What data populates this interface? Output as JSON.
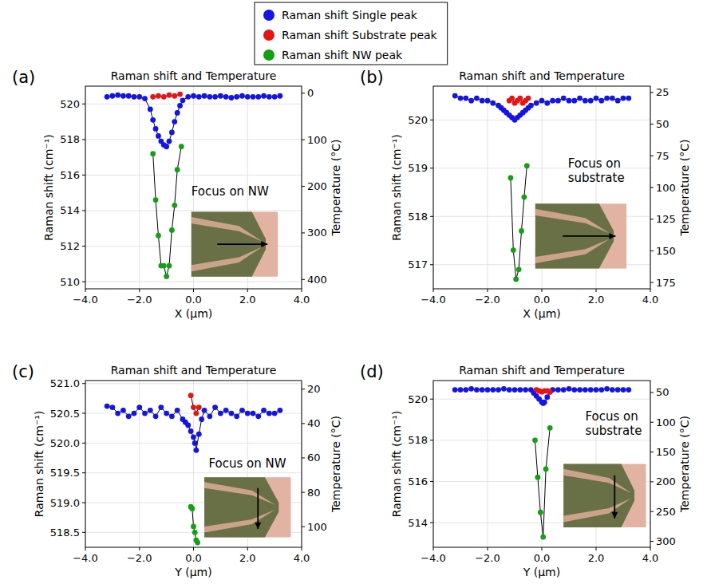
{
  "chart_data": [
    {
      "type": "line",
      "label": "(a)",
      "title": "Raman shift and Temperature",
      "x_label": "X (μm)",
      "y_label": "Raman shift (cm⁻¹)",
      "y2_label": "Temperature (°C)",
      "annotations": [
        {
          "text": "Focus on NW"
        }
      ],
      "legend": "top",
      "grid": true,
      "xlim": [
        -4,
        4
      ],
      "xticks": [
        {
          "value": -4,
          "label": "−4.0"
        },
        {
          "value": -2,
          "label": "−2.0"
        },
        {
          "value": 0,
          "label": "0.0"
        },
        {
          "value": 2,
          "label": "2.0"
        },
        {
          "value": 4,
          "label": "4.0"
        }
      ],
      "ylim": [
        509.6,
        521.0
      ],
      "yticks": [
        510,
        512,
        514,
        516,
        518,
        520
      ],
      "y2lim": [
        420,
        -15
      ],
      "y2ticks": [
        0,
        100,
        200,
        300,
        400
      ],
      "series": [
        {
          "name": "Raman shift Single peak",
          "color": "#1414e6",
          "marker": "circle",
          "line_style": "solid",
          "x": [
            -3.2,
            -3.0,
            -2.8,
            -2.6,
            -2.4,
            -2.2,
            -2.0,
            -1.8,
            -1.6,
            -1.5,
            -1.4,
            -1.3,
            -1.2,
            -1.1,
            -1.0,
            -0.9,
            -0.8,
            -0.7,
            -0.6,
            -0.5,
            -0.4,
            -0.2,
            0.0,
            0.2,
            0.4,
            0.6,
            0.8,
            1.0,
            1.2,
            1.4,
            1.6,
            1.8,
            2.0,
            2.2,
            2.4,
            2.6,
            2.8,
            3.0,
            3.2
          ],
          "values": [
            520.4,
            520.45,
            520.5,
            520.45,
            520.45,
            520.4,
            520.4,
            520.3,
            519.7,
            519.1,
            518.6,
            518.2,
            517.9,
            517.7,
            517.6,
            517.9,
            518.4,
            519.0,
            519.5,
            519.9,
            520.2,
            520.4,
            520.45,
            520.4,
            520.45,
            520.4,
            520.4,
            520.45,
            520.4,
            520.35,
            520.4,
            520.45,
            520.4,
            520.4,
            520.4,
            520.45,
            520.4,
            520.4,
            520.45
          ]
        },
        {
          "name": "Raman shift Substrate peak",
          "color": "#e61414",
          "marker": "circle",
          "line_style": "solid",
          "x": [
            -1.5,
            -1.3,
            -1.1,
            -0.9,
            -0.7,
            -0.5
          ],
          "values": [
            520.4,
            520.45,
            520.4,
            520.5,
            520.45,
            520.55
          ]
        },
        {
          "name": "Raman shift NW peak",
          "color": "#14a014",
          "marker": "circle",
          "line_style": "solid",
          "x": [
            -1.5,
            -1.4,
            -1.3,
            -1.2,
            -1.1,
            -1.0,
            -0.9,
            -0.8,
            -0.7,
            -0.6,
            -0.45
          ],
          "values": [
            517.2,
            514.6,
            512.6,
            510.9,
            510.9,
            510.3,
            510.9,
            512.9,
            514.3,
            516.3,
            517.6
          ]
        }
      ]
    },
    {
      "type": "line",
      "label": "(b)",
      "title": "Raman shift and Temperature",
      "x_label": "X (μm)",
      "y_label": "Raman shift (cm⁻¹)",
      "y2_label": "Temperature (°C)",
      "annotations": [
        {
          "text": "Focus on substrate"
        }
      ],
      "grid": true,
      "xlim": [
        -4,
        4
      ],
      "xticks": [
        {
          "value": -4,
          "label": "−4.0"
        },
        {
          "value": -2,
          "label": "−2.0"
        },
        {
          "value": 0,
          "label": "0.0"
        },
        {
          "value": 2,
          "label": "2.0"
        },
        {
          "value": 4,
          "label": "4.0"
        }
      ],
      "ylim": [
        516.5,
        520.7
      ],
      "yticks": [
        517,
        518,
        519,
        520
      ],
      "y2lim": [
        180,
        20
      ],
      "y2ticks": [
        25,
        50,
        75,
        100,
        125,
        150,
        175
      ],
      "series": [
        {
          "name": "Raman shift Single peak",
          "color": "#1414e6",
          "marker": "circle",
          "line_style": "solid",
          "x": [
            -3.2,
            -3.0,
            -2.8,
            -2.6,
            -2.4,
            -2.2,
            -2.0,
            -1.8,
            -1.6,
            -1.5,
            -1.4,
            -1.3,
            -1.2,
            -1.1,
            -1.0,
            -0.9,
            -0.8,
            -0.7,
            -0.6,
            -0.5,
            -0.4,
            -0.2,
            0.0,
            0.2,
            0.4,
            0.6,
            0.8,
            1.0,
            1.2,
            1.4,
            1.6,
            1.8,
            2.0,
            2.2,
            2.4,
            2.6,
            2.8,
            3.0,
            3.2
          ],
          "values": [
            520.5,
            520.45,
            520.45,
            520.4,
            520.45,
            520.4,
            520.4,
            520.35,
            520.3,
            520.25,
            520.2,
            520.15,
            520.1,
            520.05,
            520.0,
            520.05,
            520.1,
            520.15,
            520.2,
            520.25,
            520.3,
            520.35,
            520.4,
            520.35,
            520.4,
            520.4,
            520.45,
            520.4,
            520.4,
            520.45,
            520.4,
            520.4,
            520.45,
            520.4,
            520.45,
            520.45,
            520.4,
            520.45,
            520.45
          ]
        },
        {
          "name": "Raman shift Substrate peak",
          "color": "#e61414",
          "marker": "circle",
          "line_style": "solid",
          "x": [
            -1.2,
            -1.1,
            -1.0,
            -0.9,
            -0.8,
            -0.7,
            -0.6,
            -0.5
          ],
          "values": [
            520.4,
            520.45,
            520.35,
            520.4,
            520.45,
            520.35,
            520.4,
            520.45
          ]
        },
        {
          "name": "Raman shift NW peak",
          "color": "#14a014",
          "marker": "circle",
          "line_style": "solid",
          "x": [
            -1.15,
            -1.05,
            -0.95,
            -0.85,
            -0.75,
            -0.65,
            -0.55
          ],
          "values": [
            518.8,
            517.3,
            516.7,
            516.9,
            517.7,
            518.4,
            519.05
          ]
        }
      ]
    },
    {
      "type": "line",
      "label": "(c)",
      "title": "Raman shift and Temperature",
      "x_label": "Y (μm)",
      "y_label": "Raman shift (cm⁻¹)",
      "y2_label": "Temperature (°C)",
      "annotations": [
        {
          "text": "Focus on NW"
        }
      ],
      "grid": true,
      "xlim": [
        -4,
        4
      ],
      "xticks": [
        {
          "value": -4,
          "label": "−4.0"
        },
        {
          "value": -2,
          "label": "−2.0"
        },
        {
          "value": 0,
          "label": "0.0"
        },
        {
          "value": 2,
          "label": "2.0"
        },
        {
          "value": 4,
          "label": "4.0"
        }
      ],
      "ylim": [
        518.25,
        521.05
      ],
      "yticks": [
        518.5,
        {
          "value": 519,
          "label": "519.0"
        },
        519.5,
        {
          "value": 520,
          "label": "520.0"
        },
        520.5,
        {
          "value": 521,
          "label": "521.0"
        }
      ],
      "y2lim": [
        112,
        15
      ],
      "y2ticks": [
        20,
        40,
        60,
        80,
        100
      ],
      "series": [
        {
          "name": "Raman shift Single peak",
          "color": "#1414e6",
          "marker": "circle",
          "line_style": "solid",
          "x": [
            -3.2,
            -3.0,
            -2.8,
            -2.6,
            -2.4,
            -2.2,
            -2.0,
            -1.8,
            -1.6,
            -1.4,
            -1.2,
            -1.0,
            -0.8,
            -0.6,
            -0.4,
            -0.3,
            -0.2,
            -0.1,
            0.0,
            0.05,
            0.1,
            0.2,
            0.3,
            0.4,
            0.6,
            0.8,
            1.0,
            1.2,
            1.4,
            1.6,
            1.8,
            2.0,
            2.2,
            2.4,
            2.6,
            2.8,
            3.0,
            3.2
          ],
          "values": [
            520.62,
            520.6,
            520.5,
            520.55,
            520.45,
            520.5,
            520.6,
            520.5,
            520.55,
            520.45,
            520.6,
            520.5,
            520.45,
            520.55,
            520.4,
            520.35,
            520.3,
            520.2,
            520.1,
            520.0,
            519.88,
            520.15,
            520.4,
            520.55,
            520.45,
            520.6,
            520.5,
            520.55,
            520.5,
            520.45,
            520.55,
            520.5,
            520.5,
            520.45,
            520.55,
            520.5,
            520.5,
            520.55
          ]
        },
        {
          "name": "Raman shift Substrate peak",
          "color": "#e61414",
          "marker": "circle",
          "line_style": "solid",
          "x": [
            -0.1,
            0.0,
            0.1,
            0.2
          ],
          "values": [
            520.8,
            520.6,
            520.5,
            520.6
          ]
        },
        {
          "name": "Raman shift NW peak",
          "color": "#14a014",
          "marker": "circle",
          "line_style": "solid",
          "x": [
            -0.1,
            -0.05,
            0.0,
            0.05,
            0.1,
            0.15
          ],
          "values": [
            518.93,
            518.9,
            518.6,
            518.5,
            518.37,
            518.33
          ]
        }
      ]
    },
    {
      "type": "line",
      "label": "(d)",
      "title": "Raman shift and Temperature",
      "x_label": "Y (μm)",
      "y_label": "Raman shift (cm⁻¹)",
      "y2_label": "Temperature (°C)",
      "annotations": [
        {
          "text": "Focus on substrate"
        }
      ],
      "grid": true,
      "xlim": [
        -4,
        4
      ],
      "xticks": [
        {
          "value": -4,
          "label": "−4.0"
        },
        {
          "value": -2,
          "label": "−2.0"
        },
        {
          "value": 0,
          "label": "0.0"
        },
        {
          "value": 2,
          "label": "2.0"
        },
        {
          "value": 4,
          "label": "4.0"
        }
      ],
      "ylim": [
        512.8,
        520.9
      ],
      "yticks": [
        514,
        516,
        518,
        520
      ],
      "y2lim": [
        310,
        30
      ],
      "y2ticks": [
        50,
        100,
        150,
        200,
        250,
        300
      ],
      "series": [
        {
          "name": "Raman shift Single peak",
          "color": "#1414e6",
          "marker": "circle",
          "line_style": "solid",
          "x": [
            -3.2,
            -3.0,
            -2.8,
            -2.6,
            -2.4,
            -2.2,
            -2.0,
            -1.8,
            -1.6,
            -1.4,
            -1.2,
            -1.0,
            -0.8,
            -0.6,
            -0.4,
            -0.3,
            -0.2,
            -0.1,
            0.0,
            0.05,
            0.1,
            0.2,
            0.3,
            0.4,
            0.6,
            0.8,
            1.0,
            1.2,
            1.4,
            1.6,
            1.8,
            2.0,
            2.2,
            2.4,
            2.6,
            2.8,
            3.0,
            3.2
          ],
          "values": [
            520.45,
            520.45,
            520.45,
            520.5,
            520.45,
            520.45,
            520.45,
            520.45,
            520.45,
            520.5,
            520.45,
            520.45,
            520.45,
            520.45,
            520.45,
            520.3,
            520.15,
            520.0,
            519.85,
            519.8,
            519.85,
            520.1,
            520.35,
            520.45,
            520.45,
            520.45,
            520.5,
            520.45,
            520.45,
            520.45,
            520.45,
            520.45,
            520.45,
            520.5,
            520.45,
            520.45,
            520.45,
            520.45
          ]
        },
        {
          "name": "Raman shift Substrate peak",
          "color": "#e61414",
          "marker": "circle",
          "line_style": "solid",
          "x": [
            -0.2,
            -0.1,
            0.0,
            0.1,
            0.2,
            0.3
          ],
          "values": [
            520.45,
            520.4,
            520.35,
            520.4,
            520.4,
            520.35
          ]
        },
        {
          "name": "Raman shift NW peak",
          "color": "#14a014",
          "marker": "circle",
          "line_style": "solid",
          "x": [
            -0.25,
            -0.15,
            -0.05,
            0.05,
            0.15,
            0.3
          ],
          "values": [
            518.0,
            516.2,
            514.5,
            513.3,
            516.6,
            518.6
          ]
        }
      ]
    }
  ]
}
